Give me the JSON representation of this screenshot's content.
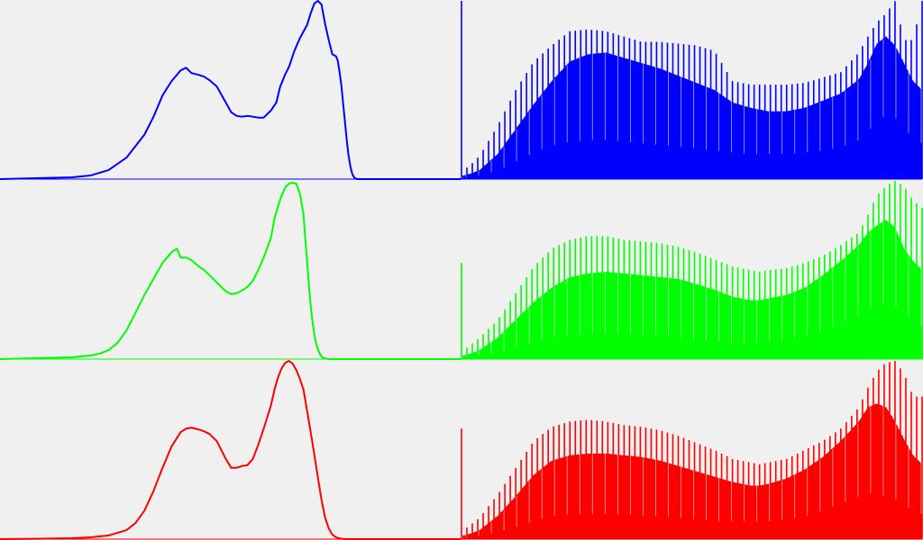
{
  "background": "#f0f0f0",
  "chart_data": [
    {
      "type": "line",
      "channel": "blue",
      "color": "#0000ff",
      "xlim": [
        0,
        255
      ],
      "ylim": [
        0,
        1
      ],
      "grid": false,
      "x": [
        0,
        20,
        40,
        50,
        60,
        70,
        80,
        85,
        90,
        95,
        100,
        103,
        106,
        110,
        113,
        116,
        120,
        125,
        128,
        131,
        134,
        137,
        140,
        143,
        146,
        150,
        153,
        155,
        158,
        160,
        163,
        166,
        170,
        172,
        174,
        176,
        178,
        180,
        182,
        184,
        186,
        187,
        188,
        189,
        190,
        191,
        192,
        193,
        194,
        195,
        196,
        197,
        198,
        200,
        202,
        205,
        210,
        220,
        240,
        255
      ],
      "values": [
        0.0,
        0.005,
        0.01,
        0.02,
        0.05,
        0.12,
        0.25,
        0.35,
        0.47,
        0.55,
        0.61,
        0.625,
        0.595,
        0.585,
        0.575,
        0.555,
        0.52,
        0.43,
        0.375,
        0.355,
        0.35,
        0.355,
        0.35,
        0.345,
        0.345,
        0.385,
        0.43,
        0.515,
        0.59,
        0.63,
        0.72,
        0.79,
        0.865,
        0.93,
        0.985,
        1.0,
        0.98,
        0.87,
        0.78,
        0.7,
        0.69,
        0.665,
        0.6,
        0.525,
        0.42,
        0.32,
        0.215,
        0.13,
        0.07,
        0.03,
        0.01,
        0.003,
        0.0,
        0.0,
        0.0,
        0.0,
        0.0,
        0.0,
        0.0,
        0.0
      ]
    },
    {
      "type": "bar",
      "channel": "blue",
      "color": "#0000ff",
      "xlim": [
        0,
        255
      ],
      "ylim": [
        0,
        1
      ],
      "grid": false,
      "envelope_x": [
        0,
        1,
        5,
        10,
        20,
        30,
        40,
        50,
        60,
        70,
        80,
        90,
        100,
        110,
        120,
        130,
        140,
        150,
        160,
        165,
        170,
        180,
        190,
        200,
        210,
        220,
        225,
        230,
        235,
        240,
        245,
        250,
        255
      ],
      "peaks": [
        1.0,
        0.05,
        0.08,
        0.13,
        0.3,
        0.5,
        0.66,
        0.75,
        0.83,
        0.84,
        0.83,
        0.8,
        0.77,
        0.77,
        0.76,
        0.75,
        0.72,
        0.55,
        0.53,
        0.53,
        0.53,
        0.53,
        0.54,
        0.57,
        0.6,
        0.71,
        0.8,
        0.88,
        0.93,
        0.999,
        0.78,
        0.78,
        1.0
      ],
      "mids": [
        0.05,
        0.02,
        0.03,
        0.05,
        0.14,
        0.28,
        0.42,
        0.55,
        0.66,
        0.7,
        0.71,
        0.68,
        0.65,
        0.62,
        0.58,
        0.54,
        0.5,
        0.43,
        0.4,
        0.39,
        0.38,
        0.38,
        0.4,
        0.44,
        0.48,
        0.56,
        0.65,
        0.76,
        0.8,
        0.75,
        0.65,
        0.55,
        0.5
      ],
      "bases": [
        0.02,
        0.01,
        0.015,
        0.02,
        0.05,
        0.1,
        0.15,
        0.19,
        0.21,
        0.22,
        0.22,
        0.21,
        0.2,
        0.19,
        0.18,
        0.17,
        0.16,
        0.15,
        0.14,
        0.14,
        0.14,
        0.14,
        0.15,
        0.16,
        0.18,
        0.22,
        0.27,
        0.33,
        0.36,
        0.34,
        0.28,
        0.22,
        0.2
      ]
    },
    {
      "type": "line",
      "channel": "green",
      "color": "#00ff00",
      "xlim": [
        0,
        255
      ],
      "ylim": [
        0,
        1
      ],
      "grid": false,
      "x": [
        0,
        20,
        40,
        50,
        55,
        60,
        65,
        70,
        75,
        80,
        85,
        90,
        95,
        98,
        100,
        103,
        106,
        110,
        113,
        116,
        120,
        125,
        128,
        131,
        134,
        137,
        140,
        143,
        146,
        150,
        152,
        154,
        156,
        158,
        160,
        162,
        164,
        166,
        168,
        169,
        170,
        171,
        172,
        173,
        174,
        175,
        176,
        177,
        178,
        179,
        180,
        182,
        185,
        190,
        200,
        220,
        240,
        255
      ],
      "values": [
        0.0,
        0.005,
        0.01,
        0.02,
        0.03,
        0.05,
        0.09,
        0.16,
        0.26,
        0.36,
        0.45,
        0.54,
        0.6,
        0.62,
        0.57,
        0.57,
        0.555,
        0.52,
        0.5,
        0.47,
        0.43,
        0.38,
        0.365,
        0.37,
        0.385,
        0.405,
        0.44,
        0.5,
        0.57,
        0.68,
        0.79,
        0.86,
        0.92,
        0.965,
        0.985,
        0.99,
        0.985,
        0.93,
        0.815,
        0.68,
        0.55,
        0.42,
        0.3,
        0.21,
        0.14,
        0.09,
        0.055,
        0.03,
        0.015,
        0.007,
        0.003,
        0.0,
        0.0,
        0.0,
        0.0,
        0.0,
        0.0,
        0.0
      ]
    },
    {
      "type": "bar",
      "channel": "green",
      "color": "#00ff00",
      "xlim": [
        0,
        255
      ],
      "ylim": [
        0,
        1
      ],
      "grid": false,
      "envelope_x": [
        0,
        1,
        5,
        10,
        20,
        30,
        40,
        50,
        60,
        70,
        80,
        90,
        100,
        110,
        120,
        130,
        140,
        150,
        160,
        165,
        170,
        180,
        190,
        200,
        210,
        220,
        225,
        230,
        235,
        240,
        245,
        250,
        255
      ],
      "peaks": [
        0.54,
        0.05,
        0.08,
        0.12,
        0.22,
        0.37,
        0.52,
        0.62,
        0.67,
        0.69,
        0.69,
        0.67,
        0.66,
        0.65,
        0.63,
        0.6,
        0.56,
        0.52,
        0.5,
        0.49,
        0.5,
        0.51,
        0.54,
        0.58,
        0.64,
        0.71,
        0.81,
        0.92,
        0.97,
        1.0,
        0.97,
        0.89,
        0.85
      ],
      "mids": [
        0.03,
        0.02,
        0.03,
        0.05,
        0.12,
        0.22,
        0.32,
        0.4,
        0.46,
        0.48,
        0.49,
        0.48,
        0.47,
        0.46,
        0.45,
        0.42,
        0.39,
        0.35,
        0.33,
        0.33,
        0.34,
        0.36,
        0.4,
        0.47,
        0.55,
        0.64,
        0.71,
        0.75,
        0.78,
        0.74,
        0.62,
        0.55,
        0.5
      ],
      "bases": [
        0.02,
        0.01,
        0.015,
        0.02,
        0.04,
        0.07,
        0.1,
        0.12,
        0.13,
        0.14,
        0.14,
        0.14,
        0.13,
        0.13,
        0.12,
        0.11,
        0.1,
        0.09,
        0.09,
        0.09,
        0.1,
        0.11,
        0.13,
        0.16,
        0.2,
        0.25,
        0.28,
        0.3,
        0.31,
        0.29,
        0.25,
        0.2,
        0.18
      ]
    },
    {
      "type": "line",
      "channel": "red",
      "color": "#ff0000",
      "xlim": [
        0,
        255
      ],
      "ylim": [
        0,
        1
      ],
      "grid": false,
      "x": [
        0,
        20,
        40,
        50,
        60,
        70,
        75,
        80,
        85,
        90,
        95,
        100,
        103,
        106,
        110,
        113,
        116,
        120,
        125,
        128,
        131,
        134,
        137,
        140,
        143,
        146,
        150,
        152,
        154,
        156,
        158,
        160,
        162,
        164,
        166,
        168,
        170,
        172,
        174,
        176,
        178,
        180,
        182,
        184,
        186,
        188,
        190,
        192,
        194,
        196,
        198,
        200,
        205,
        210,
        220,
        240,
        255
      ],
      "values": [
        0.0,
        0.002,
        0.005,
        0.01,
        0.02,
        0.05,
        0.09,
        0.16,
        0.27,
        0.4,
        0.52,
        0.6,
        0.62,
        0.625,
        0.615,
        0.605,
        0.59,
        0.55,
        0.45,
        0.4,
        0.4,
        0.41,
        0.415,
        0.45,
        0.53,
        0.62,
        0.75,
        0.84,
        0.91,
        0.96,
        0.99,
        1.0,
        0.985,
        0.95,
        0.9,
        0.84,
        0.72,
        0.6,
        0.475,
        0.345,
        0.22,
        0.12,
        0.06,
        0.025,
        0.01,
        0.004,
        0.001,
        0.0,
        0.0,
        0.0,
        0.0,
        0.0,
        0.0,
        0.0,
        0.0,
        0.0,
        0.0
      ]
    },
    {
      "type": "bar",
      "channel": "red",
      "color": "#ff0000",
      "xlim": [
        0,
        255
      ],
      "ylim": [
        0,
        1
      ],
      "grid": false,
      "envelope_x": [
        0,
        1,
        5,
        10,
        20,
        30,
        40,
        50,
        60,
        70,
        80,
        90,
        100,
        110,
        120,
        130,
        140,
        150,
        160,
        165,
        170,
        180,
        190,
        200,
        210,
        220,
        225,
        230,
        235,
        240,
        245,
        250,
        255
      ],
      "peaks": [
        0.62,
        0.05,
        0.08,
        0.12,
        0.25,
        0.4,
        0.55,
        0.63,
        0.66,
        0.67,
        0.66,
        0.64,
        0.63,
        0.61,
        0.58,
        0.54,
        0.5,
        0.45,
        0.43,
        0.42,
        0.43,
        0.45,
        0.5,
        0.55,
        0.62,
        0.74,
        0.85,
        0.94,
        0.99,
        1.0,
        0.93,
        0.8,
        0.8
      ],
      "mids": [
        0.03,
        0.02,
        0.03,
        0.05,
        0.13,
        0.24,
        0.36,
        0.44,
        0.47,
        0.48,
        0.48,
        0.47,
        0.46,
        0.44,
        0.41,
        0.38,
        0.35,
        0.32,
        0.3,
        0.3,
        0.31,
        0.34,
        0.39,
        0.46,
        0.55,
        0.66,
        0.74,
        0.76,
        0.74,
        0.66,
        0.56,
        0.47,
        0.42
      ],
      "bases": [
        0.02,
        0.01,
        0.015,
        0.02,
        0.04,
        0.07,
        0.1,
        0.13,
        0.14,
        0.14,
        0.14,
        0.14,
        0.13,
        0.13,
        0.12,
        0.11,
        0.1,
        0.1,
        0.1,
        0.1,
        0.1,
        0.11,
        0.13,
        0.16,
        0.2,
        0.24,
        0.26,
        0.25,
        0.24,
        0.22,
        0.19,
        0.15,
        0.14
      ]
    }
  ]
}
